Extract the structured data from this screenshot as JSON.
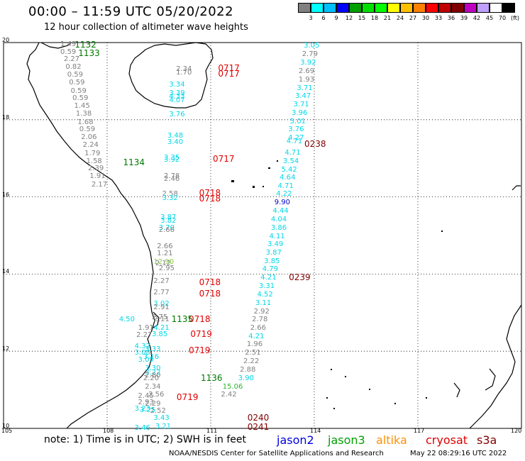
{
  "title": "00:00 – 11:59 UTC 05/20/2022",
  "subtitle": "12 hour collection of altimeter wave heights",
  "colorbar": {
    "colors": [
      "#808080",
      "#00ffff",
      "#00bfff",
      "#0000ff",
      "#00a000",
      "#00e000",
      "#00ff00",
      "#ffff00",
      "#ffc000",
      "#ff8000",
      "#ff0000",
      "#c00000",
      "#800000",
      "#c000c0",
      "#c0a0ff",
      "#ffffff",
      "#000000"
    ],
    "labels": [
      "3",
      "6",
      "9",
      "12",
      "15",
      "18",
      "21",
      "24",
      "27",
      "30",
      "33",
      "36",
      "39",
      "42",
      "45",
      "70",
      "(ft)"
    ]
  },
  "lat_labels": [
    {
      "text": "20",
      "v": 20
    },
    {
      "text": "18",
      "v": 18
    },
    {
      "text": "16",
      "v": 16
    },
    {
      "text": "14",
      "v": 14
    },
    {
      "text": "12",
      "v": 12
    },
    {
      "text": "10",
      "v": 10
    }
  ],
  "lon_labels": [
    {
      "text": "105",
      "v": 105
    },
    {
      "text": "108",
      "v": 108
    },
    {
      "text": "111",
      "v": 111
    },
    {
      "text": "114",
      "v": 114
    },
    {
      "text": "117",
      "v": 117
    },
    {
      "text": "120",
      "v": 120
    }
  ],
  "labels": [
    {
      "t": "1.49",
      "lon": 106.85,
      "lat": 19.95,
      "c": "#808080"
    },
    {
      "t": "0.59",
      "lon": 106.85,
      "lat": 19.75,
      "c": "#808080"
    },
    {
      "t": "2.27",
      "lon": 106.95,
      "lat": 19.55,
      "c": "#808080"
    },
    {
      "t": "0.82",
      "lon": 107.0,
      "lat": 19.35,
      "c": "#808080"
    },
    {
      "t": "0.59",
      "lon": 107.05,
      "lat": 19.15,
      "c": "#808080"
    },
    {
      "t": "0.59",
      "lon": 107.1,
      "lat": 18.95,
      "c": "#808080"
    },
    {
      "t": "0.59",
      "lon": 107.15,
      "lat": 18.74,
      "c": "#808080"
    },
    {
      "t": "0.59",
      "lon": 107.2,
      "lat": 18.54,
      "c": "#808080"
    },
    {
      "t": "1.45",
      "lon": 107.25,
      "lat": 18.34,
      "c": "#808080"
    },
    {
      "t": "1.38",
      "lon": 107.3,
      "lat": 18.14,
      "c": "#808080"
    },
    {
      "t": "1.68",
      "lon": 107.35,
      "lat": 17.93,
      "c": "#808080"
    },
    {
      "t": "0.59",
      "lon": 107.4,
      "lat": 17.73,
      "c": "#808080"
    },
    {
      "t": "2.06",
      "lon": 107.45,
      "lat": 17.53,
      "c": "#808080"
    },
    {
      "t": "2.24",
      "lon": 107.5,
      "lat": 17.33,
      "c": "#808080"
    },
    {
      "t": "1.79",
      "lon": 107.55,
      "lat": 17.12,
      "c": "#808080"
    },
    {
      "t": "1.58",
      "lon": 107.6,
      "lat": 16.92,
      "c": "#808080"
    },
    {
      "t": "2.39",
      "lon": 107.65,
      "lat": 16.72,
      "c": "#808080"
    },
    {
      "t": "1.91",
      "lon": 107.7,
      "lat": 16.52,
      "c": "#808080"
    },
    {
      "t": "2.17",
      "lon": 107.75,
      "lat": 16.31,
      "c": "#808080"
    },
    {
      "t": "3.05",
      "lon": 113.9,
      "lat": 19.9,
      "c": "#00d8e8"
    },
    {
      "t": "2.79",
      "lon": 113.85,
      "lat": 19.68,
      "c": "#808080"
    },
    {
      "t": "3.92",
      "lon": 113.8,
      "lat": 19.46,
      "c": "#00d8e8"
    },
    {
      "t": "2.69",
      "lon": 113.75,
      "lat": 19.24,
      "c": "#808080"
    },
    {
      "t": "1.93",
      "lon": 113.75,
      "lat": 19.03,
      "c": "#808080"
    },
    {
      "t": "3.71",
      "lon": 113.7,
      "lat": 18.81,
      "c": "#00d8e8"
    },
    {
      "t": "3.47",
      "lon": 113.65,
      "lat": 18.6,
      "c": "#00d8e8"
    },
    {
      "t": "3.71",
      "lon": 113.6,
      "lat": 18.38,
      "c": "#00d8e8"
    },
    {
      "t": "3.96",
      "lon": 113.55,
      "lat": 18.17,
      "c": "#00d8e8"
    },
    {
      "t": "5.01",
      "lon": 113.5,
      "lat": 17.95,
      "c": "#00d8e8"
    },
    {
      "t": "3.76",
      "lon": 113.45,
      "lat": 17.74,
      "c": "#00d8e8"
    },
    {
      "t": "4.27",
      "lon": 113.45,
      "lat": 17.52,
      "c": "#00d8e8"
    },
    {
      "t": "4.71",
      "lon": 113.4,
      "lat": 17.42,
      "c": "#00d8e8"
    },
    {
      "t": "4.71",
      "lon": 113.35,
      "lat": 17.13,
      "c": "#00d8e8"
    },
    {
      "t": "3.54",
      "lon": 113.3,
      "lat": 16.91,
      "c": "#00d8e8"
    },
    {
      "t": "5.42",
      "lon": 113.25,
      "lat": 16.7,
      "c": "#00d8e8"
    },
    {
      "t": "4.64",
      "lon": 113.2,
      "lat": 16.48,
      "c": "#00d8e8"
    },
    {
      "t": "4.71",
      "lon": 113.15,
      "lat": 16.27,
      "c": "#00d8e8"
    },
    {
      "t": "4.22",
      "lon": 113.1,
      "lat": 16.06,
      "c": "#00d8e8"
    },
    {
      "t": "9.90",
      "lon": 113.05,
      "lat": 15.84,
      "c": "#0000cc"
    },
    {
      "t": "4.44",
      "lon": 113.0,
      "lat": 15.62,
      "c": "#00d8e8"
    },
    {
      "t": "4.04",
      "lon": 112.95,
      "lat": 15.41,
      "c": "#00d8e8"
    },
    {
      "t": "3.86",
      "lon": 112.95,
      "lat": 15.19,
      "c": "#00d8e8"
    },
    {
      "t": "4.11",
      "lon": 112.9,
      "lat": 14.97,
      "c": "#00d8e8"
    },
    {
      "t": "3.49",
      "lon": 112.85,
      "lat": 14.76,
      "c": "#00d8e8"
    },
    {
      "t": "3.87",
      "lon": 112.8,
      "lat": 14.54,
      "c": "#00d8e8"
    },
    {
      "t": "3.85",
      "lon": 112.75,
      "lat": 14.32,
      "c": "#00d8e8"
    },
    {
      "t": "4.79",
      "lon": 112.7,
      "lat": 14.11,
      "c": "#00d8e8"
    },
    {
      "t": "4.21",
      "lon": 112.65,
      "lat": 13.89,
      "c": "#00d8e8"
    },
    {
      "t": "3.31",
      "lon": 112.6,
      "lat": 13.67,
      "c": "#00d8e8"
    },
    {
      "t": "4.52",
      "lon": 112.55,
      "lat": 13.46,
      "c": "#00d8e8"
    },
    {
      "t": "3.11",
      "lon": 112.5,
      "lat": 13.24,
      "c": "#00d8e8"
    },
    {
      "t": "2.92",
      "lon": 112.45,
      "lat": 13.02,
      "c": "#808080"
    },
    {
      "t": "2.78",
      "lon": 112.4,
      "lat": 12.81,
      "c": "#808080"
    },
    {
      "t": "2.66",
      "lon": 112.35,
      "lat": 12.59,
      "c": "#808080"
    },
    {
      "t": "4.21",
      "lon": 112.3,
      "lat": 12.37,
      "c": "#00d8e8"
    },
    {
      "t": "1.96",
      "lon": 112.25,
      "lat": 12.16,
      "c": "#808080"
    },
    {
      "t": "2.51",
      "lon": 112.2,
      "lat": 11.94,
      "c": "#808080"
    },
    {
      "t": "2.22",
      "lon": 112.15,
      "lat": 11.72,
      "c": "#808080"
    },
    {
      "t": "2.88",
      "lon": 112.05,
      "lat": 11.51,
      "c": "#808080"
    },
    {
      "t": "3.90",
      "lon": 112.0,
      "lat": 11.29,
      "c": "#00d8e8"
    },
    {
      "t": "15.06",
      "lon": 111.55,
      "lat": 11.07,
      "c": "#2cb52c"
    },
    {
      "t": "2.42",
      "lon": 111.5,
      "lat": 10.86,
      "c": "#808080"
    },
    {
      "t": "2.34",
      "lon": 110.2,
      "lat": 19.31,
      "c": "#808080"
    },
    {
      "t": "1.70",
      "lon": 110.2,
      "lat": 19.21,
      "c": "#808080"
    },
    {
      "t": "3.34",
      "lon": 110.0,
      "lat": 18.89,
      "c": "#00d8e8"
    },
    {
      "t": "3.39",
      "lon": 110.0,
      "lat": 18.68,
      "c": "#00d8e8"
    },
    {
      "t": "4.33",
      "lon": 110.0,
      "lat": 18.58,
      "c": "#00d8e8"
    },
    {
      "t": "4.07",
      "lon": 110.0,
      "lat": 18.5,
      "c": "#00d8e8"
    },
    {
      "t": "3.76",
      "lon": 110.0,
      "lat": 18.13,
      "c": "#00d8e8"
    },
    {
      "t": "3.48",
      "lon": 109.95,
      "lat": 17.58,
      "c": "#00d8e8"
    },
    {
      "t": "3.40",
      "lon": 109.95,
      "lat": 17.41,
      "c": "#00d8e8"
    },
    {
      "t": "3.35",
      "lon": 109.85,
      "lat": 17.0,
      "c": "#00d8e8"
    },
    {
      "t": "3.92",
      "lon": 109.85,
      "lat": 16.95,
      "c": "#00d8e8"
    },
    {
      "t": "2.78",
      "lon": 109.85,
      "lat": 16.52,
      "c": "#808080"
    },
    {
      "t": "2.46",
      "lon": 109.85,
      "lat": 16.46,
      "c": "#808080"
    },
    {
      "t": "2.58",
      "lon": 109.8,
      "lat": 16.07,
      "c": "#808080"
    },
    {
      "t": "3.32",
      "lon": 109.8,
      "lat": 15.95,
      "c": "#00d8e8"
    },
    {
      "t": "3.87",
      "lon": 109.75,
      "lat": 15.46,
      "c": "#00d8e8"
    },
    {
      "t": "3.82",
      "lon": 109.75,
      "lat": 15.36,
      "c": "#00d8e8"
    },
    {
      "t": "3.70",
      "lon": 109.7,
      "lat": 15.18,
      "c": "#00d8e8"
    },
    {
      "t": "2.66",
      "lon": 109.7,
      "lat": 15.12,
      "c": "#808080"
    },
    {
      "t": "2.66",
      "lon": 109.65,
      "lat": 14.71,
      "c": "#808080"
    },
    {
      "t": "1.21",
      "lon": 109.65,
      "lat": 14.53,
      "c": "#808080"
    },
    {
      "t": "12.90",
      "lon": 109.55,
      "lat": 14.31,
      "c": "#88cc44"
    },
    {
      "t": "2.12",
      "lon": 109.6,
      "lat": 14.27,
      "c": "#808080"
    },
    {
      "t": "2.95",
      "lon": 109.7,
      "lat": 14.14,
      "c": "#808080"
    },
    {
      "t": "2.27",
      "lon": 109.55,
      "lat": 13.8,
      "c": "#808080"
    },
    {
      "t": "2.77",
      "lon": 109.55,
      "lat": 13.52,
      "c": "#808080"
    },
    {
      "t": "3.02",
      "lon": 109.55,
      "lat": 13.21,
      "c": "#00d8e8"
    },
    {
      "t": "2.91",
      "lon": 109.55,
      "lat": 13.13,
      "c": "#808080"
    },
    {
      "t": "4.50",
      "lon": 108.55,
      "lat": 12.82,
      "c": "#00d8e8"
    },
    {
      "t": "2.75",
      "lon": 109.5,
      "lat": 12.86,
      "c": "#808080"
    },
    {
      "t": "2.11",
      "lon": 109.55,
      "lat": 12.82,
      "c": "#808080"
    },
    {
      "t": "1.91",
      "lon": 109.1,
      "lat": 12.6,
      "c": "#808080"
    },
    {
      "t": "4.21",
      "lon": 109.55,
      "lat": 12.6,
      "c": "#00d8e8"
    },
    {
      "t": "2.27",
      "lon": 109.05,
      "lat": 12.41,
      "c": "#808080"
    },
    {
      "t": "3.85",
      "lon": 109.5,
      "lat": 12.42,
      "c": "#00d8e8"
    },
    {
      "t": "4.32",
      "lon": 109.0,
      "lat": 12.12,
      "c": "#00d8e8"
    },
    {
      "t": "3.33",
      "lon": 109.3,
      "lat": 12.04,
      "c": "#00d8e8"
    },
    {
      "t": "3.08",
      "lon": 109.0,
      "lat": 11.95,
      "c": "#00d8e8"
    },
    {
      "t": "3.16",
      "lon": 109.25,
      "lat": 11.83,
      "c": "#00d8e8"
    },
    {
      "t": "3.05",
      "lon": 109.1,
      "lat": 11.76,
      "c": "#00d8e8"
    },
    {
      "t": "3.30",
      "lon": 109.3,
      "lat": 11.55,
      "c": "#00d8e8"
    },
    {
      "t": "3.22",
      "lon": 109.3,
      "lat": 11.43,
      "c": "#00d8e8"
    },
    {
      "t": "2.80",
      "lon": 109.3,
      "lat": 11.36,
      "c": "#808080"
    },
    {
      "t": "2.20",
      "lon": 109.25,
      "lat": 11.28,
      "c": "#808080"
    },
    {
      "t": "2.34",
      "lon": 109.3,
      "lat": 11.06,
      "c": "#808080"
    },
    {
      "t": "2.45",
      "lon": 109.1,
      "lat": 10.82,
      "c": "#808080"
    },
    {
      "t": "2.56",
      "lon": 109.4,
      "lat": 10.87,
      "c": "#808080"
    },
    {
      "t": "2.93",
      "lon": 109.1,
      "lat": 10.66,
      "c": "#808080"
    },
    {
      "t": "2.29",
      "lon": 109.3,
      "lat": 10.62,
      "c": "#808080"
    },
    {
      "t": "3.23",
      "lon": 109.0,
      "lat": 10.49,
      "c": "#00d8e8"
    },
    {
      "t": "3.25",
      "lon": 109.15,
      "lat": 10.46,
      "c": "#00d8e8"
    },
    {
      "t": "2.52",
      "lon": 109.45,
      "lat": 10.44,
      "c": "#808080"
    },
    {
      "t": "3.43",
      "lon": 109.55,
      "lat": 10.25,
      "c": "#00d8e8"
    },
    {
      "t": "3.46",
      "lon": 109.0,
      "lat": 10.0,
      "c": "#00d8e8"
    },
    {
      "t": "3.21",
      "lon": 109.6,
      "lat": 10.04,
      "c": "#00d8e8"
    }
  ],
  "codes": [
    {
      "t": "1132",
      "lon": 107.35,
      "lat": 19.95,
      "c": "#007800"
    },
    {
      "t": "1133",
      "lon": 107.45,
      "lat": 19.72,
      "c": "#007800"
    },
    {
      "t": "1134",
      "lon": 108.75,
      "lat": 16.9,
      "c": "#007800"
    },
    {
      "t": "0717",
      "lon": 111.5,
      "lat": 19.33,
      "c": "#e00000"
    },
    {
      "t": "0717",
      "lon": 111.5,
      "lat": 19.2,
      "c": "#e00000"
    },
    {
      "t": "0717",
      "lon": 111.35,
      "lat": 16.98,
      "c": "#e00000"
    },
    {
      "t": "0718",
      "lon": 110.95,
      "lat": 16.1,
      "c": "#e00000"
    },
    {
      "t": "0718",
      "lon": 110.95,
      "lat": 15.96,
      "c": "#e00000"
    },
    {
      "t": "0718",
      "lon": 110.95,
      "lat": 13.78,
      "c": "#e00000"
    },
    {
      "t": "0718",
      "lon": 110.95,
      "lat": 13.5,
      "c": "#e00000"
    },
    {
      "t": "0718",
      "lon": 110.65,
      "lat": 12.83,
      "c": "#e00000"
    },
    {
      "t": "1135",
      "lon": 110.15,
      "lat": 12.83,
      "c": "#007800"
    },
    {
      "t": "0719",
      "lon": 110.7,
      "lat": 12.44,
      "c": "#e00000"
    },
    {
      "t": "0719",
      "lon": 110.65,
      "lat": 12.02,
      "c": "#e00000"
    },
    {
      "t": "1136",
      "lon": 111.0,
      "lat": 11.3,
      "c": "#007800"
    },
    {
      "t": "0719",
      "lon": 110.3,
      "lat": 10.8,
      "c": "#e00000"
    },
    {
      "t": "0238",
      "lon": 114.0,
      "lat": 17.37,
      "c": "#800000"
    },
    {
      "t": "0239",
      "lon": 113.55,
      "lat": 13.91,
      "c": "#800000"
    },
    {
      "t": "0240",
      "lon": 112.35,
      "lat": 10.28,
      "c": "#800000"
    },
    {
      "t": "0241",
      "lon": 112.35,
      "lat": 10.04,
      "c": "#800000"
    }
  ],
  "note": "note: 1) Time is in UTC; 2) SWH is in feet",
  "legend": [
    {
      "t": "jason2",
      "c": "#0000e0"
    },
    {
      "t": "jason3",
      "c": "#00a000"
    },
    {
      "t": "altika",
      "c": "#ff9000"
    },
    {
      "t": "cryosat",
      "c": "#e00000"
    },
    {
      "t": "s3a",
      "c": "#800000"
    }
  ],
  "credit": "NOAA/NESDIS Center for Satellite Applications and Research",
  "timestamp": "May 22 08:29:16 UTC 2022"
}
